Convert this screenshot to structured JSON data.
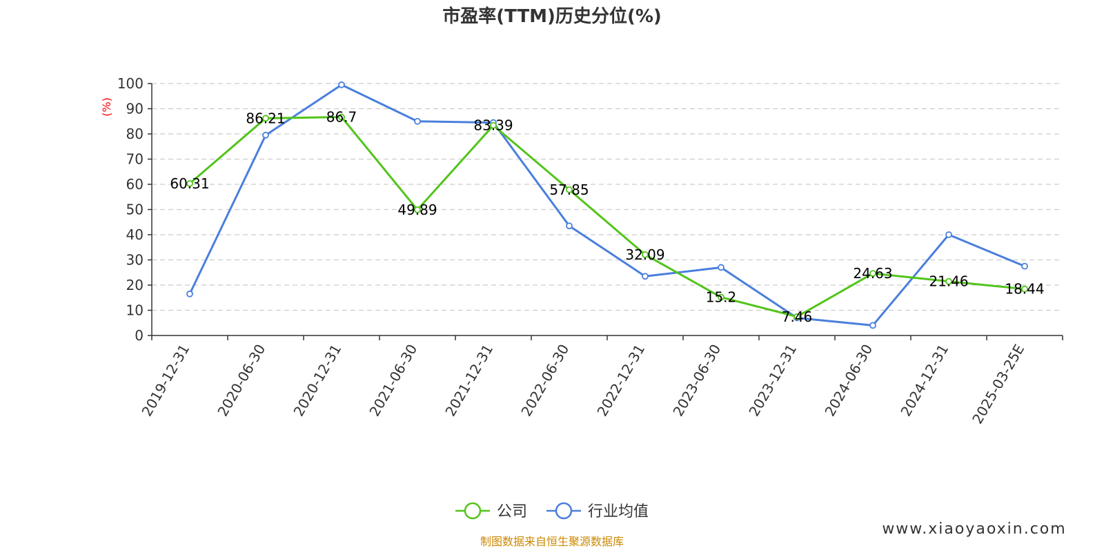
{
  "chart_data": {
    "type": "line",
    "title": "市盈率(TTM)历史分位(%)",
    "ylabel": "(%)",
    "ylim": [
      0,
      100
    ],
    "yticks": [
      0,
      10,
      20,
      30,
      40,
      50,
      60,
      70,
      80,
      90,
      100
    ],
    "grid": true,
    "legend_position": "bottom",
    "categories": [
      "2019-12-31",
      "2020-06-30",
      "2020-12-31",
      "2021-06-30",
      "2021-12-31",
      "2022-06-30",
      "2022-12-31",
      "2023-06-30",
      "2023-12-31",
      "2024-06-30",
      "2024-12-31",
      "2025-03-25E"
    ],
    "series": [
      {
        "name": "公司",
        "color": "#52c41a",
        "values": [
          60.31,
          86.21,
          86.7,
          49.89,
          83.39,
          57.85,
          32.09,
          15.2,
          7.46,
          24.63,
          21.46,
          18.44
        ],
        "labels": [
          "60.31",
          "86.21",
          "86.7",
          "49.89",
          "83.39",
          "57.85",
          "32.09",
          "15.2",
          "7.46",
          "24.63",
          "21.46",
          "18.44"
        ]
      },
      {
        "name": "行业均值",
        "color": "#4a7fdc",
        "values": [
          16.5,
          79.5,
          99.5,
          85,
          84.5,
          43.5,
          23.5,
          27,
          7,
          4,
          40,
          27.5
        ]
      }
    ]
  },
  "footer": {
    "source": "制图数据来自恒生聚源数据库",
    "source_color": "#cc8800",
    "watermark": "www.xiaoyaoxin.com"
  }
}
